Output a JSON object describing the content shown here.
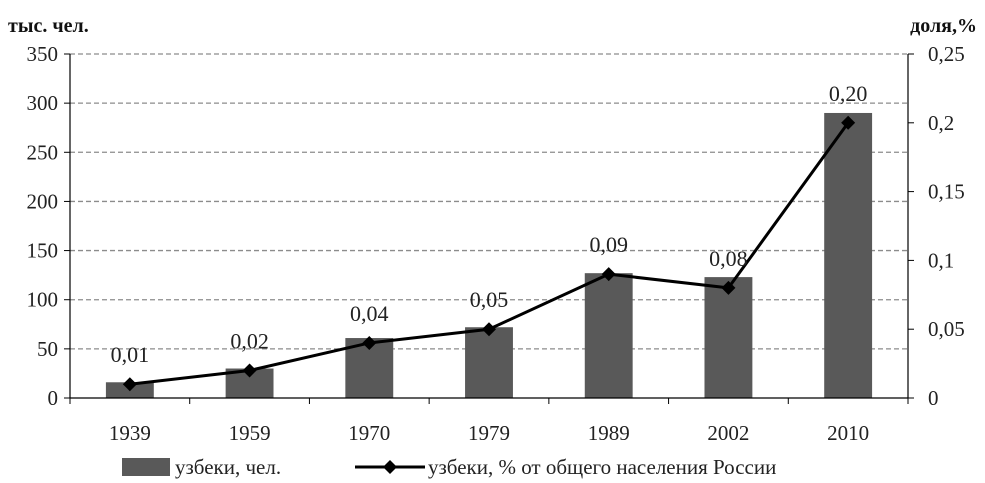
{
  "chart_data": {
    "type": "bar",
    "categories": [
      "1939",
      "1959",
      "1970",
      "1979",
      "1989",
      "2002",
      "2010"
    ],
    "series": [
      {
        "name": "узбеки, чел.",
        "type": "bar",
        "axis": "left",
        "color": "#595959",
        "values": [
          16,
          30,
          61,
          72,
          127,
          123,
          290
        ]
      },
      {
        "name": "узбеки, % от общего населения России",
        "type": "line",
        "axis": "right",
        "color": "#000000",
        "marker": "diamond",
        "values": [
          0.01,
          0.02,
          0.04,
          0.05,
          0.09,
          0.08,
          0.2
        ],
        "data_labels": [
          "0,01",
          "0,02",
          "0,04",
          "0,05",
          "0,09",
          "0,08",
          "0,20"
        ]
      }
    ],
    "ylabel": "тыс. чел.",
    "ylim": [
      0,
      350
    ],
    "yticks": [
      "0",
      "50",
      "100",
      "150",
      "200",
      "250",
      "300",
      "350"
    ],
    "y2label": "доля,%",
    "y2lim": [
      0,
      0.25
    ],
    "y2ticks": [
      "0",
      "0,05",
      "0,1",
      "0,15",
      "0,2",
      "0,25"
    ],
    "grid": true,
    "legend_position": "bottom"
  }
}
